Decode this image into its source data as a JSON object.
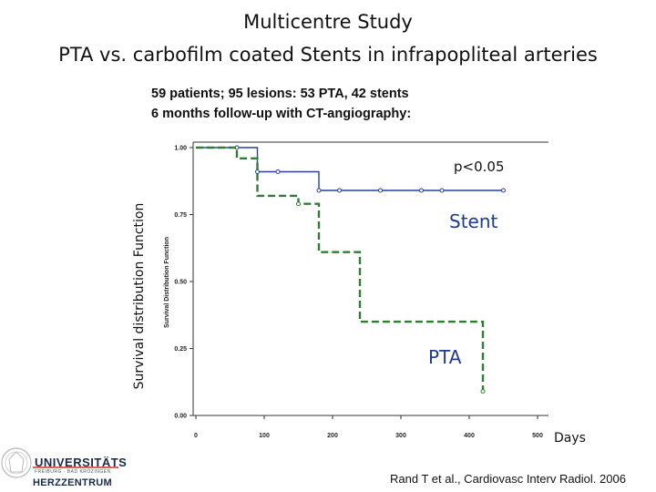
{
  "header": {
    "title_line1": "Multicentre Study",
    "title_line2": "PTA vs. carbofilm coated Stents in infrapopliteal arteries",
    "subtitle_line1": "59 patients; 95 lesions: 53 PTA, 42 stents",
    "subtitle_line2": "6 months follow-up with CT-angiography:"
  },
  "chart_data": {
    "type": "line",
    "step": true,
    "ylabel_outer": "Survival distribution Function",
    "ylabel_inner": "Survival Distribution Function",
    "xlabel": "Days",
    "xlim": [
      0,
      500
    ],
    "ylim": [
      0,
      1
    ],
    "x_ticks": [
      "0",
      "100",
      "200",
      "300",
      "400",
      "500"
    ],
    "y_ticks": [
      "0.00",
      "0.25",
      "0.50",
      "0.75",
      "1.00"
    ],
    "annotations": {
      "pvalue": "p<0.05",
      "stent_label": "Stent",
      "pta_label": "PTA"
    },
    "series": [
      {
        "name": "Stent",
        "color": "#2a3fa0",
        "dashed": false,
        "points": [
          [
            0,
            1.0
          ],
          [
            90,
            1.0
          ],
          [
            90,
            0.91
          ],
          [
            180,
            0.91
          ],
          [
            180,
            0.84
          ],
          [
            450,
            0.84
          ]
        ],
        "censored": [
          [
            60,
            1.0
          ],
          [
            90,
            0.91
          ],
          [
            120,
            0.91
          ],
          [
            180,
            0.84
          ],
          [
            210,
            0.84
          ],
          [
            270,
            0.84
          ],
          [
            330,
            0.84
          ],
          [
            360,
            0.84
          ],
          [
            450,
            0.84
          ]
        ]
      },
      {
        "name": "PTA",
        "color": "#2e7d32",
        "dashed": true,
        "points": [
          [
            0,
            1.0
          ],
          [
            60,
            1.0
          ],
          [
            60,
            0.96
          ],
          [
            90,
            0.96
          ],
          [
            90,
            0.82
          ],
          [
            150,
            0.82
          ],
          [
            150,
            0.79
          ],
          [
            180,
            0.79
          ],
          [
            180,
            0.61
          ],
          [
            240,
            0.61
          ],
          [
            240,
            0.35
          ],
          [
            420,
            0.35
          ],
          [
            420,
            0.09
          ]
        ],
        "censored": [
          [
            150,
            0.79
          ],
          [
            420,
            0.09
          ]
        ]
      }
    ]
  },
  "footer": {
    "logo_line1": "UNIVERSITÄTS",
    "logo_line2": "FREIBURG · BAD KROZINGEN",
    "logo_line3": "HERZZENTRUM",
    "citation": "Rand T et al., Cardiovasc Interv Radiol. 2006"
  }
}
